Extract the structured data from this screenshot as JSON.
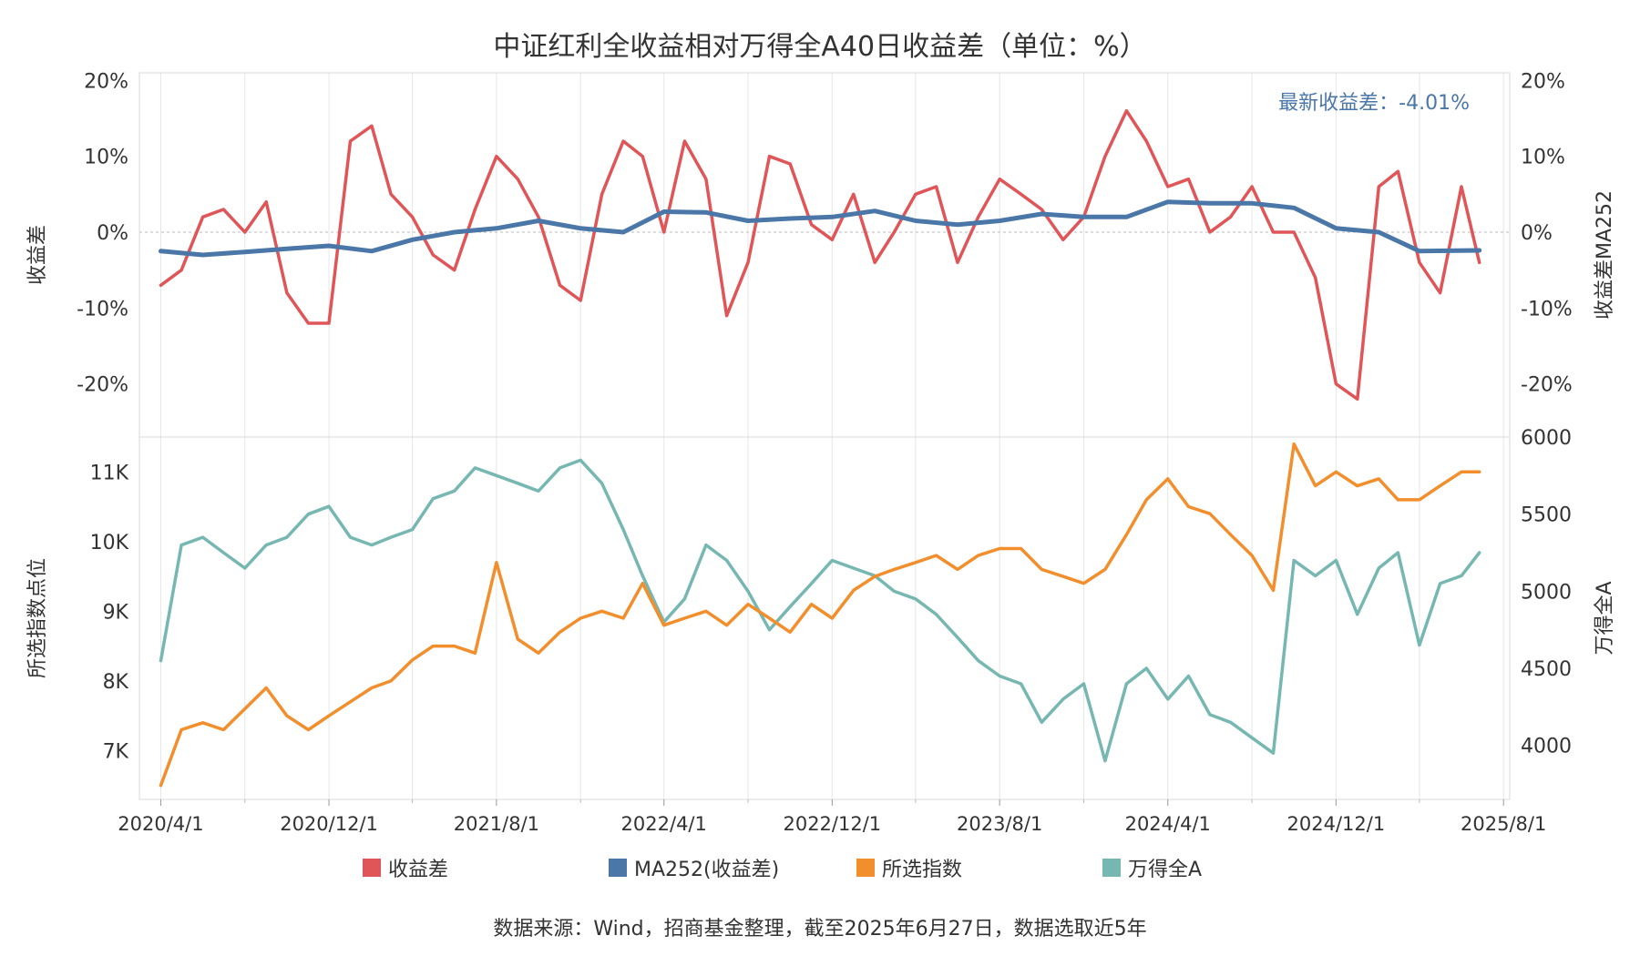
{
  "title": "中证红利全收益相对万得全A40日收益差（单位：%）",
  "source": "数据来源：Wind，招商基金整理，截至2025年6月27日，数据选取近5年",
  "annotation": "最新收益差：-4.01%",
  "colors": {
    "spread": "#e05558",
    "ma": "#4a77a8",
    "index": "#f28e2c",
    "wind": "#76b7b2",
    "annotation": "#4a77a8"
  },
  "legend": [
    {
      "label": "收益差",
      "color": "#e05558"
    },
    {
      "label": "MA252(收益差)",
      "color": "#4a77a8"
    },
    {
      "label": "所选指数",
      "color": "#f28e2c"
    },
    {
      "label": "万得全A",
      "color": "#76b7b2"
    }
  ],
  "chart_data": [
    {
      "type": "line",
      "panel": "top",
      "ylabel_left": "收益差",
      "ylabel_right": "收益差MA252",
      "ylim": [
        -27,
        21
      ],
      "yticks": [
        20,
        10,
        0,
        -10,
        -20
      ],
      "ytick_labels": [
        "20%",
        "10%",
        "0%",
        "-10%",
        "-20%"
      ],
      "zero_line": true,
      "series": [
        {
          "name": "收益差",
          "x": [
            "2020-04-01",
            "2020-05-01",
            "2020-06-01",
            "2020-07-01",
            "2020-08-01",
            "2020-09-01",
            "2020-10-01",
            "2020-11-01",
            "2020-12-01",
            "2021-01-01",
            "2021-02-01",
            "2021-03-01",
            "2021-04-01",
            "2021-05-01",
            "2021-06-01",
            "2021-07-01",
            "2021-08-01",
            "2021-09-01",
            "2021-10-01",
            "2021-11-01",
            "2021-12-01",
            "2022-01-01",
            "2022-02-01",
            "2022-03-01",
            "2022-04-01",
            "2022-05-01",
            "2022-06-01",
            "2022-07-01",
            "2022-08-01",
            "2022-09-01",
            "2022-10-01",
            "2022-11-01",
            "2022-12-01",
            "2023-01-01",
            "2023-02-01",
            "2023-03-01",
            "2023-04-01",
            "2023-05-01",
            "2023-06-01",
            "2023-07-01",
            "2023-08-01",
            "2023-09-01",
            "2023-10-01",
            "2023-11-01",
            "2023-12-01",
            "2024-01-01",
            "2024-02-01",
            "2024-03-01",
            "2024-04-01",
            "2024-05-01",
            "2024-06-01",
            "2024-07-01",
            "2024-08-01",
            "2024-09-01",
            "2024-10-01",
            "2024-11-01",
            "2024-12-01",
            "2025-01-01",
            "2025-02-01",
            "2025-03-01",
            "2025-04-01",
            "2025-05-01",
            "2025-06-01",
            "2025-06-27"
          ],
          "values": [
            -7,
            -5,
            2,
            3,
            0,
            4,
            -8,
            -12,
            -12,
            12,
            14,
            5,
            2,
            -3,
            -5,
            3,
            10,
            7,
            2,
            -7,
            -9,
            5,
            12,
            10,
            0,
            12,
            7,
            -11,
            -4,
            10,
            9,
            1,
            -1,
            5,
            -4,
            0,
            5,
            6,
            -4,
            2,
            7,
            5,
            3,
            -1,
            2,
            10,
            16,
            12,
            6,
            7,
            0,
            2,
            6,
            0,
            0,
            -6,
            -20,
            -22,
            6,
            8,
            -4,
            -8,
            6,
            -4.01
          ]
        },
        {
          "name": "MA252(收益差)",
          "x": [
            "2020-04-01",
            "2020-06-01",
            "2020-08-01",
            "2020-10-01",
            "2020-12-01",
            "2021-02-01",
            "2021-04-01",
            "2021-06-01",
            "2021-08-01",
            "2021-10-01",
            "2021-12-01",
            "2022-02-01",
            "2022-04-01",
            "2022-06-01",
            "2022-08-01",
            "2022-10-01",
            "2022-12-01",
            "2023-02-01",
            "2023-04-01",
            "2023-06-01",
            "2023-08-01",
            "2023-10-01",
            "2023-12-01",
            "2024-02-01",
            "2024-04-01",
            "2024-06-01",
            "2024-08-01",
            "2024-10-01",
            "2024-12-01",
            "2025-02-01",
            "2025-04-01",
            "2025-06-27"
          ],
          "values": [
            -2.5,
            -3,
            -2.6,
            -2.2,
            -1.8,
            -2.5,
            -1,
            0,
            0.5,
            1.5,
            0.5,
            0,
            2.7,
            2.6,
            1.5,
            1.8,
            2.0,
            2.8,
            1.5,
            1.0,
            1.5,
            2.4,
            2.0,
            2.0,
            4.0,
            3.8,
            3.8,
            3.2,
            0.5,
            0,
            -2.5,
            -2.4
          ]
        }
      ]
    },
    {
      "type": "line",
      "panel": "bottom",
      "ylabel_left": "所选指数点位",
      "ylabel_right": "万得全A",
      "ylim_left": [
        6300,
        11500
      ],
      "ylim_right": [
        3650,
        6000
      ],
      "yticks_left": [
        11000,
        10000,
        9000,
        8000,
        7000
      ],
      "ytick_labels_left": [
        "11K",
        "10K",
        "9K",
        "8K",
        "7K"
      ],
      "yticks_right": [
        6000,
        5500,
        5000,
        4500,
        4000
      ],
      "ytick_labels_right": [
        "6000",
        "5500",
        "5000",
        "4500",
        "4000"
      ],
      "series": [
        {
          "name": "所选指数",
          "axis": "left",
          "x": [
            "2020-04-01",
            "2020-05-01",
            "2020-06-01",
            "2020-07-01",
            "2020-08-01",
            "2020-09-01",
            "2020-10-01",
            "2020-11-01",
            "2020-12-01",
            "2021-01-01",
            "2021-02-01",
            "2021-03-01",
            "2021-04-01",
            "2021-05-01",
            "2021-06-01",
            "2021-07-01",
            "2021-08-01",
            "2021-09-01",
            "2021-10-01",
            "2021-11-01",
            "2021-12-01",
            "2022-01-01",
            "2022-02-01",
            "2022-03-01",
            "2022-04-01",
            "2022-05-01",
            "2022-06-01",
            "2022-07-01",
            "2022-08-01",
            "2022-09-01",
            "2022-10-01",
            "2022-11-01",
            "2022-12-01",
            "2023-01-01",
            "2023-02-01",
            "2023-03-01",
            "2023-04-01",
            "2023-05-01",
            "2023-06-01",
            "2023-07-01",
            "2023-08-01",
            "2023-09-01",
            "2023-10-01",
            "2023-11-01",
            "2023-12-01",
            "2024-01-01",
            "2024-02-01",
            "2024-03-01",
            "2024-04-01",
            "2024-05-01",
            "2024-06-01",
            "2024-07-01",
            "2024-08-01",
            "2024-09-01",
            "2024-10-01",
            "2024-11-01",
            "2024-12-01",
            "2025-01-01",
            "2025-02-01",
            "2025-03-01",
            "2025-04-01",
            "2025-05-01",
            "2025-06-01",
            "2025-06-27"
          ],
          "values": [
            6500,
            7300,
            7400,
            7300,
            7600,
            7900,
            7500,
            7300,
            7500,
            7700,
            7900,
            8000,
            8300,
            8500,
            8500,
            8400,
            9700,
            8600,
            8400,
            8700,
            8900,
            9000,
            8900,
            9400,
            8800,
            8900,
            9000,
            8800,
            9100,
            8900,
            8700,
            9100,
            8900,
            9300,
            9500,
            9600,
            9700,
            9800,
            9600,
            9800,
            9900,
            9900,
            9600,
            9500,
            9400,
            9600,
            10100,
            10600,
            10900,
            10500,
            10400,
            10100,
            9800,
            9300,
            11400,
            10800,
            11000,
            10800,
            10900,
            10600,
            10600,
            10800,
            11000,
            11000
          ]
        },
        {
          "name": "万得全A",
          "axis": "right",
          "x": [
            "2020-04-01",
            "2020-05-01",
            "2020-06-01",
            "2020-07-01",
            "2020-08-01",
            "2020-09-01",
            "2020-10-01",
            "2020-11-01",
            "2020-12-01",
            "2021-01-01",
            "2021-02-01",
            "2021-03-01",
            "2021-04-01",
            "2021-05-01",
            "2021-06-01",
            "2021-07-01",
            "2021-08-01",
            "2021-09-01",
            "2021-10-01",
            "2021-11-01",
            "2021-12-01",
            "2022-01-01",
            "2022-02-01",
            "2022-03-01",
            "2022-04-01",
            "2022-05-01",
            "2022-06-01",
            "2022-07-01",
            "2022-08-01",
            "2022-09-01",
            "2022-10-01",
            "2022-11-01",
            "2022-12-01",
            "2023-01-01",
            "2023-02-01",
            "2023-03-01",
            "2023-04-01",
            "2023-05-01",
            "2023-06-01",
            "2023-07-01",
            "2023-08-01",
            "2023-09-01",
            "2023-10-01",
            "2023-11-01",
            "2023-12-01",
            "2024-01-01",
            "2024-02-01",
            "2024-03-01",
            "2024-04-01",
            "2024-05-01",
            "2024-06-01",
            "2024-07-01",
            "2024-08-01",
            "2024-09-01",
            "2024-10-01",
            "2024-11-01",
            "2024-12-01",
            "2025-01-01",
            "2025-02-01",
            "2025-03-01",
            "2025-04-01",
            "2025-05-01",
            "2025-06-01",
            "2025-06-27"
          ],
          "values": [
            4550,
            5300,
            5350,
            5250,
            5150,
            5300,
            5350,
            5500,
            5550,
            5350,
            5300,
            5350,
            5400,
            5600,
            5650,
            5800,
            5750,
            5700,
            5650,
            5800,
            5850,
            5700,
            5400,
            5100,
            4800,
            4950,
            5300,
            5200,
            5000,
            4750,
            4900,
            5050,
            5200,
            5150,
            5100,
            5000,
            4950,
            4850,
            4700,
            4550,
            4450,
            4400,
            4150,
            4300,
            4400,
            3900,
            4400,
            4500,
            4300,
            4450,
            4200,
            4150,
            4050,
            3950,
            5200,
            5100,
            5200,
            4850,
            5150,
            5250,
            4650,
            5050,
            5100,
            5250
          ]
        }
      ]
    }
  ],
  "x_axis": {
    "ticks": [
      "2020-04-01",
      "2020-12-01",
      "2021-08-01",
      "2022-04-01",
      "2022-12-01",
      "2023-08-01",
      "2024-04-01",
      "2024-12-01",
      "2025-08-01"
    ],
    "labels": [
      "2020/4/1",
      "2020/12/1",
      "2021/8/1",
      "2022/4/1",
      "2022/12/1",
      "2023/8/1",
      "2024/4/1",
      "2024/12/1",
      "2025/8/1"
    ],
    "minor_ticks": [
      "2020-08-01",
      "2021-04-01",
      "2021-12-01",
      "2022-08-01",
      "2023-04-01",
      "2023-12-01",
      "2024-08-01",
      "2025-04-01"
    ],
    "range": [
      "2020-03-01",
      "2025-08-10"
    ]
  }
}
